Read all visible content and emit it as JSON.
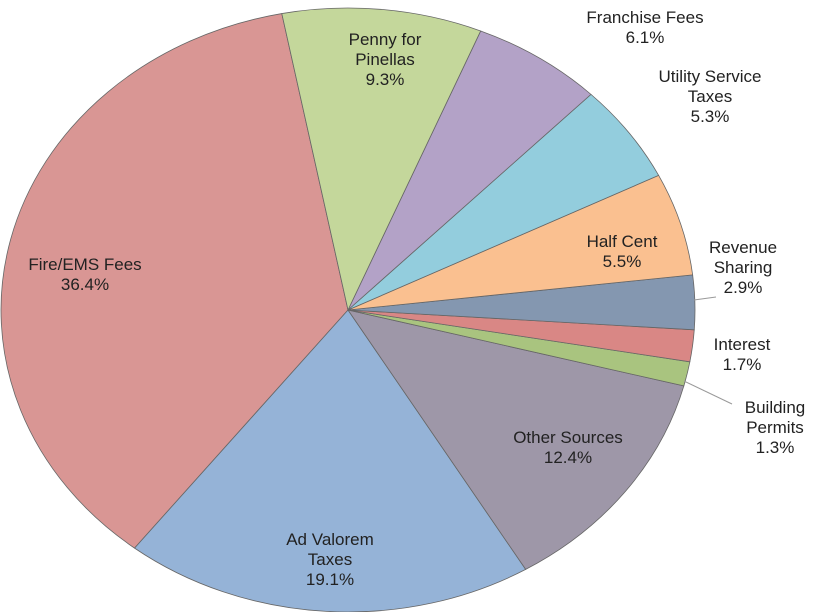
{
  "chart_data": {
    "type": "pie",
    "categories": [
      "Penny for Pinellas",
      "Franchise Fees",
      "Utility Service Taxes",
      "Half Cent",
      "Revenue Sharing",
      "Interest",
      "Building Permits",
      "Other Sources",
      "Ad Valorem Taxes",
      "Fire/EMS Fees"
    ],
    "values": [
      9.3,
      6.1,
      5.3,
      5.5,
      2.9,
      1.7,
      1.3,
      12.4,
      19.1,
      36.4
    ],
    "value_labels": [
      "9.3%",
      "6.1%",
      "5.3%",
      "5.5%",
      "2.9%",
      "1.7%",
      "1.3%",
      "12.4%",
      "19.1%",
      "36.4%"
    ],
    "colors": [
      "#c4d79b",
      "#b3a2c7",
      "#93cddd",
      "#fac090",
      "#8497b0",
      "#d98785",
      "#a9c47f",
      "#9e97a8",
      "#95b3d7",
      "#d99694"
    ]
  }
}
